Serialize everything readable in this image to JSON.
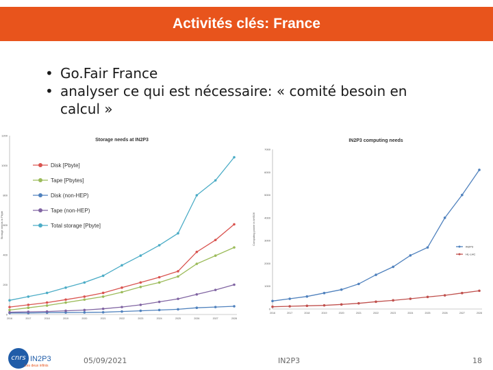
{
  "slide": {
    "title": "Activités clés: France",
    "bullets": [
      "Go.Fair France",
      "analyser ce qui est nécessaire: « comité besoin en calcul »"
    ],
    "footer": {
      "date": "05/09/2021",
      "center": "IN2P3",
      "page": "18",
      "logo_text": "cnrs",
      "logo_label": "IN2P3",
      "logo_sub": "Les deux infinis"
    }
  },
  "colors": {
    "accent": "#e8541c",
    "disk": "#d9534f",
    "tape": "#9bbb59",
    "disk_nonhep": "#4f81bd",
    "tape_nonhep": "#8064a2",
    "total": "#4bacc6",
    "in2p3": "#4f81bd",
    "hl_lhc_red": "#c0504d"
  },
  "chart_data": [
    {
      "type": "line",
      "title": "Storage needs at IN2P3",
      "ylabel": "Storage needs in Pbyte",
      "xlabel": "",
      "x": [
        "2016",
        "2017",
        "2018",
        "2019",
        "2020",
        "2021",
        "2022",
        "2023",
        "2024",
        "2025",
        "2026",
        "2027",
        "2028"
      ],
      "x_ticks": [
        "2016",
        "2017",
        "2018",
        "2019",
        "2020",
        "2021",
        "2022",
        "2023",
        "2024",
        "2025",
        "2026",
        "2027",
        "2028"
      ],
      "ylim": [
        0,
        1200
      ],
      "y_ticks": [
        "0",
        "200",
        "400",
        "600",
        "800",
        "1000",
        "1200"
      ],
      "legend_position": "top-left",
      "grid": false,
      "series": [
        {
          "name": "Disk [Pbyte]",
          "color": "#d9534f",
          "values": [
            50,
            65,
            80,
            100,
            120,
            145,
            180,
            215,
            250,
            290,
            420,
            500,
            605
          ]
        },
        {
          "name": "Tape [Pbytes]",
          "color": "#9bbb59",
          "values": [
            30,
            45,
            60,
            80,
            100,
            120,
            150,
            185,
            215,
            255,
            340,
            395,
            450
          ]
        },
        {
          "name": "Disk (non-HEP)",
          "color": "#4f81bd",
          "values": [
            10,
            10,
            12,
            13,
            14,
            15,
            20,
            25,
            30,
            35,
            45,
            50,
            55
          ]
        },
        {
          "name": "Tape (non-HEP)",
          "color": "#8064a2",
          "values": [
            15,
            18,
            20,
            25,
            30,
            38,
            50,
            65,
            85,
            105,
            135,
            165,
            200
          ]
        },
        {
          "name": "Total storage [Pbyte]",
          "color": "#4bacc6",
          "values": [
            95,
            120,
            145,
            180,
            215,
            260,
            330,
            395,
            465,
            545,
            800,
            900,
            1055
          ]
        }
      ]
    },
    {
      "type": "line",
      "title": "IN2P3 computing needs",
      "ylabel": "Computing power in kHS06",
      "xlabel": "",
      "x": [
        "2016",
        "2017",
        "2018",
        "2019",
        "2020",
        "2021",
        "2022",
        "2023",
        "2024",
        "2025",
        "2026",
        "2027",
        "2028"
      ],
      "x_ticks": [
        "2016",
        "2017",
        "2018",
        "2019",
        "2020",
        "2021",
        "2022",
        "2023",
        "2024",
        "2025",
        "2026",
        "2027",
        "2028"
      ],
      "ylim": [
        0,
        7000
      ],
      "y_ticks": [
        "0",
        "1000",
        "2000",
        "3000",
        "4000",
        "5000",
        "6000",
        "7000"
      ],
      "legend_position": "right",
      "grid": false,
      "series": [
        {
          "name": "IN2P3",
          "color": "#4f81bd",
          "values": [
            350,
            450,
            550,
            700,
            850,
            1100,
            1500,
            1850,
            2350,
            2700,
            4000,
            5000,
            6100
          ]
        },
        {
          "name": "HL-LHC",
          "color": "#c0504d",
          "values": [
            100,
            120,
            140,
            160,
            200,
            250,
            320,
            380,
            450,
            530,
            600,
            700,
            800
          ]
        }
      ]
    }
  ]
}
